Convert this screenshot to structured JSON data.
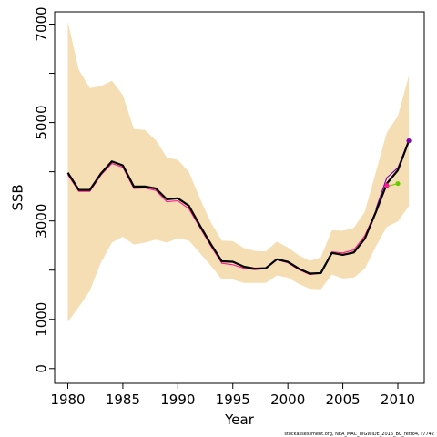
{
  "chart_data": {
    "type": "line",
    "xlabel": "Year",
    "ylabel": "SSB",
    "xlim": [
      1978.8,
      2012.4
    ],
    "ylim": [
      -300,
      7250
    ],
    "x_ticks": [
      1980,
      1985,
      1990,
      1995,
      2000,
      2005,
      2010
    ],
    "y_ticks": [
      0,
      1000,
      3000,
      5000,
      7000
    ],
    "y_minor_ticks": [
      2000,
      4000,
      6000
    ],
    "grid": false,
    "legend": "none",
    "credit": "stockassessment.org, NEA_MAC_WGWIDE_2016_BC_retro4, r7742",
    "colors": {
      "band": "#f5deb3",
      "main": "#000000",
      "retro_pink": "#ff1493",
      "retro_green": "#66cc00",
      "end_purple": "#7a00b0"
    },
    "series": [
      {
        "role": "confidence-band",
        "x": [
          1980,
          1981,
          1982,
          1983,
          1984,
          1985,
          1986,
          1987,
          1988,
          1989,
          1990,
          1991,
          1992,
          1993,
          1994,
          1995,
          1996,
          1997,
          1998,
          1999,
          2000,
          2001,
          2002,
          2003,
          2004,
          2005,
          2006,
          2007,
          2008,
          2009,
          2010,
          2011
        ],
        "lower": [
          950,
          1250,
          1580,
          2150,
          2560,
          2680,
          2520,
          2560,
          2620,
          2560,
          2650,
          2600,
          2350,
          2090,
          1810,
          1810,
          1740,
          1740,
          1740,
          1890,
          1850,
          1720,
          1620,
          1610,
          1910,
          1830,
          1850,
          2030,
          2480,
          2880,
          2990,
          3300
        ],
        "upper": [
          7050,
          6070,
          5700,
          5740,
          5850,
          5560,
          4870,
          4850,
          4640,
          4290,
          4240,
          4000,
          3460,
          2970,
          2600,
          2590,
          2450,
          2390,
          2380,
          2580,
          2460,
          2300,
          2190,
          2260,
          2810,
          2800,
          2860,
          3190,
          3990,
          4800,
          5130,
          5950
        ]
      },
      {
        "role": "estimate",
        "x": [
          1980,
          1981,
          1982,
          1983,
          1984,
          1985,
          1986,
          1987,
          1988,
          1989,
          1990,
          1991,
          1992,
          1993,
          1994,
          1995,
          1996,
          1997,
          1998,
          1999,
          2000,
          2001,
          2002,
          2003,
          2004,
          2005,
          2006,
          2007,
          2008,
          2009,
          2010,
          2011
        ],
        "y": [
          3980,
          3630,
          3630,
          3960,
          4210,
          4130,
          3700,
          3700,
          3660,
          3440,
          3460,
          3310,
          2910,
          2530,
          2180,
          2170,
          2070,
          2030,
          2040,
          2220,
          2170,
          2030,
          1930,
          1940,
          2350,
          2310,
          2360,
          2640,
          3180,
          3760,
          4030,
          4630
        ]
      },
      {
        "role": "retro-1",
        "color": "retro_pink",
        "x": [
          1980,
          1981,
          1982,
          1983,
          1984,
          1985,
          1986,
          1987,
          1988,
          1989,
          1990,
          1991,
          1992,
          1993,
          1994,
          1995,
          1996,
          1997,
          1998,
          1999,
          2000,
          2001,
          2002,
          2003,
          2004,
          2005,
          2006,
          2007,
          2008,
          2009
        ],
        "y": [
          3940,
          3600,
          3600,
          3930,
          4170,
          4090,
          3660,
          3670,
          3620,
          3390,
          3410,
          3250,
          2870,
          2490,
          2140,
          2110,
          2040,
          2010,
          2030,
          2210,
          2150,
          2010,
          1910,
          1940,
          2370,
          2350,
          2410,
          2700,
          3200,
          3720
        ]
      },
      {
        "role": "retro-2",
        "color": "retro_green",
        "x": [
          2009,
          2010
        ],
        "y": [
          3700,
          3760
        ]
      },
      {
        "role": "retro-3",
        "color": "end_purple",
        "x": [
          2008,
          2009,
          2010,
          2011
        ],
        "y": [
          3240,
          3880,
          4080,
          4630
        ]
      }
    ],
    "end_points": [
      {
        "x": 2009,
        "y": 3720,
        "color": "retro_pink"
      },
      {
        "x": 2010,
        "y": 3760,
        "color": "retro_green"
      },
      {
        "x": 2011,
        "y": 4630,
        "color": "end_purple"
      }
    ]
  }
}
